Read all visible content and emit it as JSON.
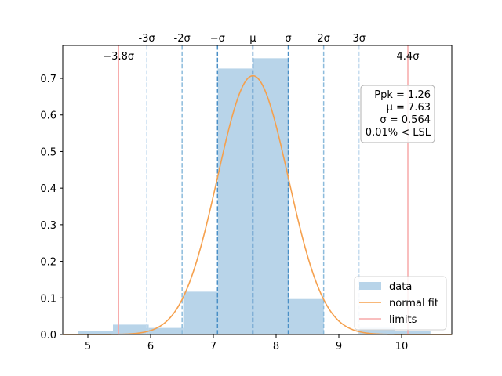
{
  "chart_data": {
    "type": "bar",
    "xlim": [
      4.6,
      10.8
    ],
    "ylim": [
      0,
      0.79
    ],
    "xticks": [
      5,
      6,
      7,
      8,
      9,
      10
    ],
    "yticks": [
      0.0,
      0.1,
      0.2,
      0.3,
      0.4,
      0.5,
      0.6,
      0.7
    ],
    "ytick_labels": [
      "0.0",
      "0.1",
      "0.2",
      "0.3",
      "0.4",
      "0.5",
      "0.6",
      "0.7"
    ],
    "histogram": {
      "name": "data",
      "color": "#b8d4e9",
      "bins": [
        {
          "x0": 4.85,
          "x1": 5.4,
          "value": 0.009
        },
        {
          "x0": 5.4,
          "x1": 5.97,
          "value": 0.027
        },
        {
          "x0": 5.97,
          "x1": 6.52,
          "value": 0.018
        },
        {
          "x0": 6.52,
          "x1": 7.07,
          "value": 0.117
        },
        {
          "x0": 7.07,
          "x1": 7.63,
          "value": 0.727
        },
        {
          "x0": 7.63,
          "x1": 8.2,
          "value": 0.755
        },
        {
          "x0": 8.2,
          "x1": 8.76,
          "value": 0.097
        },
        {
          "x0": 8.76,
          "x1": 9.33,
          "value": 0.0
        },
        {
          "x0": 9.33,
          "x1": 9.89,
          "value": 0.018
        },
        {
          "x0": 9.89,
          "x1": 10.46,
          "value": 0.009
        }
      ]
    },
    "normal_fit": {
      "name": "normal fit",
      "mu": 7.63,
      "sigma": 0.564,
      "color": "#f5a04d"
    },
    "limits": {
      "name": "limits",
      "color": "#f7a8a8",
      "values": [
        5.49,
        10.1
      ],
      "labels": [
        "−3.8σ",
        "4.4σ"
      ]
    },
    "sigma_lines": [
      {
        "k": -3,
        "label": "-3σ"
      },
      {
        "k": -2,
        "label": "-2σ"
      },
      {
        "k": -1,
        "label": "−σ"
      },
      {
        "k": 0,
        "label": "μ"
      },
      {
        "k": 1,
        "label": "σ"
      },
      {
        "k": 2,
        "label": "2σ"
      },
      {
        "k": 3,
        "label": "3σ"
      }
    ],
    "stats_box": [
      "Ppk = 1.26",
      "μ = 7.63",
      "σ = 0.564",
      "0.01% < LSL"
    ],
    "legend": {
      "position": "lower-right",
      "entries": [
        "data",
        "normal fit",
        "limits"
      ]
    },
    "grid": false
  }
}
